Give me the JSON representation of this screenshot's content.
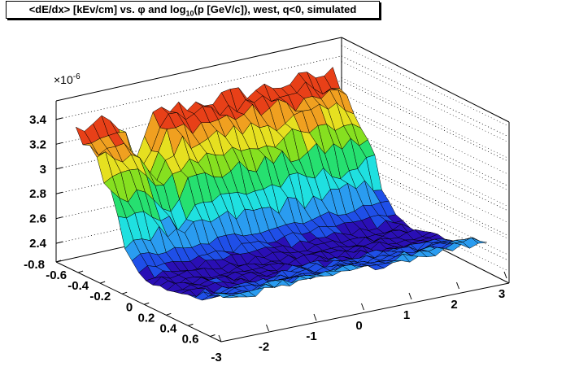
{
  "title": {
    "prefix": "<dE/dx> [kEv/cm] vs. ",
    "phi": "φ",
    "mid": " and log",
    "sub": "10",
    "suffix": "(p [GeV/c]), west, q<0, simulated"
  },
  "chart_data": {
    "type": "surface",
    "z_axis": {
      "ticks": [
        "3.4",
        "3.2",
        "3",
        "2.8",
        "2.6",
        "2.4"
      ],
      "tick_values": [
        3.4,
        3.2,
        3.0,
        2.8,
        2.6,
        2.4
      ],
      "exponent_label": "×10",
      "exponent": "-6",
      "range": [
        2.25,
        3.55
      ]
    },
    "y_axis": {
      "ticks": [
        "-0.8",
        "-0.6",
        "-0.4",
        "-0.2",
        "0",
        "0.2",
        "0.4",
        "0.6"
      ],
      "tick_values": [
        -0.8,
        -0.6,
        -0.4,
        -0.2,
        0,
        0.2,
        0.4,
        0.6
      ],
      "range": [
        -0.8,
        0.7
      ]
    },
    "x_axis": {
      "ticks": [
        "-3",
        "-2",
        "-1",
        "0",
        "1",
        "2",
        "3"
      ],
      "tick_values": [
        -3,
        -2,
        -1,
        0,
        1,
        2,
        3
      ],
      "range": [
        -3,
        3
      ]
    },
    "surface_profile": {
      "description_values_log10p": [
        -0.8,
        -0.6,
        -0.45,
        -0.35,
        -0.25,
        -0.15,
        0.0,
        0.2,
        0.4,
        0.6
      ],
      "dedx_values": [
        3.35,
        3.2,
        2.95,
        2.7,
        2.5,
        2.4,
        2.38,
        2.4,
        2.45,
        2.55
      ]
    },
    "colormap": [
      "#2a0fb5",
      "#1f4fe8",
      "#2a9cf0",
      "#1fe0e0",
      "#26e070",
      "#86e020",
      "#e6e020",
      "#f0a020",
      "#e84018",
      "#d41010"
    ]
  }
}
